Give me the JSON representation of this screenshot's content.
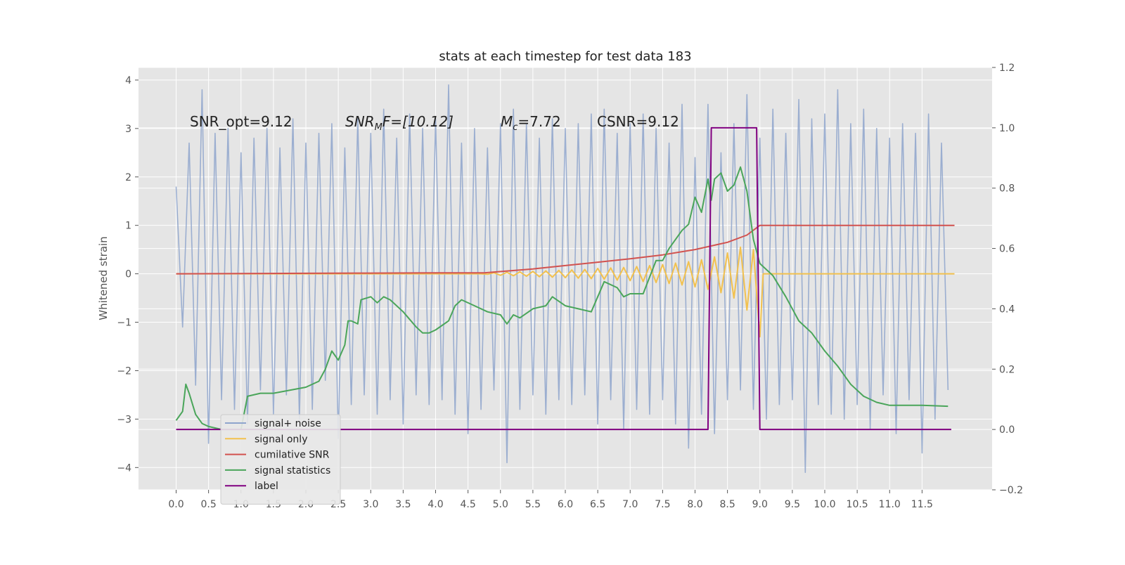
{
  "chart_data": {
    "type": "line",
    "title": "stats at each timestep for test data 183",
    "ylabel": "Whitened strain",
    "annotations": [
      {
        "text": "SNR_opt=9.12"
      },
      {
        "main": "SNR",
        "sub": "M",
        "rest": "F=[10.12]"
      },
      {
        "main": "M",
        "sub": "c",
        "rest": "=7.72"
      },
      {
        "text": "CSNR=9.12"
      }
    ],
    "grid": true,
    "legend": "lower left",
    "xlim": [
      -0.58,
      12.58
    ],
    "ylim": [
      -4.46,
      4.26
    ],
    "y2lim": [
      -0.2,
      1.2
    ],
    "xticks": [
      {
        "value": 0,
        "label": "0.0"
      },
      0.5,
      {
        "value": 1,
        "label": "1.0"
      },
      1.5,
      {
        "value": 2,
        "label": "2.0"
      },
      2.5,
      {
        "value": 3,
        "label": "3.0"
      },
      3.5,
      {
        "value": 4,
        "label": "4.0"
      },
      4.5,
      {
        "value": 5,
        "label": "5.0"
      },
      5.5,
      {
        "value": 6,
        "label": "6.0"
      },
      6.5,
      {
        "value": 7,
        "label": "7.0"
      },
      7.5,
      {
        "value": 8,
        "label": "8.0"
      },
      8.5,
      {
        "value": 9,
        "label": "9.0"
      },
      9.5,
      {
        "value": 10,
        "label": "10.0"
      },
      10.5,
      {
        "value": 11,
        "label": "11.0"
      },
      11.5
    ],
    "yticks": [
      {
        "value": -4,
        "label": "−4"
      },
      {
        "value": -3,
        "label": "−3"
      },
      {
        "value": -2,
        "label": "−2"
      },
      {
        "value": -1,
        "label": "−1"
      },
      0,
      1,
      2,
      3,
      4
    ],
    "y2ticks": [
      {
        "value": -0.2,
        "label": "−0.2"
      },
      {
        "value": 0,
        "label": "0.0"
      },
      0.2,
      0.4,
      0.6,
      0.8,
      {
        "value": 1,
        "label": "1.0"
      },
      1.2
    ],
    "series": [
      {
        "name": "signal+ noise",
        "color": "#8ea4cd",
        "x": [
          0,
          0.1,
          0.2,
          0.3,
          0.4,
          0.5,
          0.6,
          0.7,
          0.8,
          0.9,
          1,
          1.1,
          1.2,
          1.3,
          1.4,
          1.5,
          1.6,
          1.7,
          1.8,
          1.9,
          2,
          2.1,
          2.2,
          2.3,
          2.4,
          2.5,
          2.6,
          2.7,
          2.8,
          2.9,
          3,
          3.1,
          3.2,
          3.3,
          3.4,
          3.5,
          3.6,
          3.7,
          3.8,
          3.9,
          4,
          4.1,
          4.2,
          4.3,
          4.4,
          4.5,
          4.6,
          4.7,
          4.8,
          4.9,
          5,
          5.1,
          5.2,
          5.3,
          5.4,
          5.5,
          5.6,
          5.7,
          5.8,
          5.9,
          6,
          6.1,
          6.2,
          6.3,
          6.4,
          6.5,
          6.6,
          6.7,
          6.8,
          6.9,
          7,
          7.1,
          7.2,
          7.3,
          7.4,
          7.5,
          7.6,
          7.7,
          7.8,
          7.9,
          8,
          8.1,
          8.2,
          8.3,
          8.4,
          8.5,
          8.6,
          8.7,
          8.8,
          8.9,
          9,
          9.1,
          9.2,
          9.3,
          9.4,
          9.5,
          9.6,
          9.7,
          9.8,
          9.9,
          10,
          10.1,
          10.2,
          10.3,
          10.4,
          10.5,
          10.6,
          10.7,
          10.8,
          10.9,
          11,
          11.1,
          11.2,
          11.3,
          11.4,
          11.5,
          11.6,
          11.7,
          11.8,
          11.9
        ],
        "values": [
          1.8,
          -1.1,
          2.7,
          -2.3,
          3.8,
          -3.5,
          2.9,
          -2.6,
          3.0,
          -2.8,
          2.5,
          -3.1,
          2.8,
          -2.4,
          3.0,
          -2.9,
          2.6,
          -2.5,
          3.2,
          -3.0,
          2.7,
          -2.8,
          2.9,
          -2.2,
          3.1,
          -3.4,
          2.6,
          -2.7,
          3.2,
          -2.5,
          2.9,
          -2.9,
          3.4,
          -2.6,
          2.8,
          -3.1,
          3.3,
          -2.5,
          3.0,
          -2.7,
          3.2,
          -2.6,
          3.9,
          -2.9,
          2.7,
          -3.3,
          3.0,
          -2.8,
          2.6,
          -2.4,
          3.1,
          -3.9,
          3.4,
          -2.8,
          3.1,
          -2.5,
          2.8,
          -2.9,
          3.2,
          -2.6,
          3.0,
          -2.7,
          3.1,
          -2.5,
          3.3,
          -3.1,
          3.4,
          -2.6,
          2.9,
          -3.2,
          3.1,
          -2.8,
          3.3,
          -2.9,
          3.0,
          -2.6,
          2.7,
          -3.1,
          3.5,
          -3.6,
          2.4,
          -2.9,
          3.5,
          -3.3,
          2.5,
          -2.6,
          3.1,
          -2.4,
          3.7,
          -2.8,
          2.8,
          -3.0,
          3.4,
          -2.7,
          2.9,
          -2.6,
          3.6,
          -4.1,
          3.2,
          -2.7,
          3.3,
          -2.9,
          3.8,
          -3.0,
          3.1,
          -2.7,
          3.4,
          -3.2,
          3.0,
          -2.5,
          2.8,
          -3.3,
          3.1,
          -2.6,
          2.9,
          -3.7,
          3.3,
          -3.0,
          2.7,
          -2.4
        ]
      },
      {
        "name": "signal only",
        "color": "#f2c14e",
        "x": [
          0,
          4.7,
          4.8,
          4.9,
          5,
          5.1,
          5.2,
          5.3,
          5.4,
          5.5,
          5.6,
          5.7,
          5.8,
          5.9,
          6,
          6.1,
          6.2,
          6.3,
          6.4,
          6.5,
          6.6,
          6.7,
          6.8,
          6.9,
          7,
          7.1,
          7.2,
          7.3,
          7.4,
          7.5,
          7.6,
          7.7,
          7.8,
          7.9,
          8,
          8.1,
          8.2,
          8.3,
          8.4,
          8.5,
          8.6,
          8.7,
          8.8,
          8.9,
          9,
          9.05,
          12
        ],
        "values": [
          0,
          0,
          -0.01,
          0.02,
          -0.03,
          0.03,
          -0.04,
          0.04,
          -0.05,
          0.05,
          -0.06,
          0.06,
          -0.07,
          0.07,
          -0.08,
          0.08,
          -0.09,
          0.09,
          -0.1,
          0.11,
          -0.11,
          0.12,
          -0.13,
          0.13,
          -0.14,
          0.15,
          -0.16,
          0.17,
          -0.18,
          0.19,
          -0.2,
          0.22,
          -0.23,
          0.25,
          -0.27,
          0.29,
          -0.32,
          0.35,
          -0.39,
          0.43,
          -0.5,
          0.55,
          -0.75,
          0.5,
          -1.3,
          0,
          0
        ]
      },
      {
        "name": "cumilative SNR",
        "color": "#d2524f",
        "x": [
          0,
          1,
          2,
          3,
          4,
          4.75,
          5.5,
          6,
          6.5,
          7,
          7.5,
          8,
          8.5,
          8.8,
          9,
          12
        ],
        "values": [
          0,
          0.005,
          0.01,
          0.015,
          0.02,
          0.02,
          0.1,
          0.17,
          0.24,
          0.31,
          0.39,
          0.5,
          0.65,
          0.8,
          1.0,
          1.0
        ]
      },
      {
        "name": "signal statistics",
        "color": "#4aa55a",
        "axis": "y2",
        "x": [
          0,
          0.1,
          0.15,
          0.2,
          0.3,
          0.4,
          0.5,
          0.7,
          1.0,
          1.1,
          1.3,
          1.5,
          2.0,
          2.2,
          2.3,
          2.4,
          2.5,
          2.6,
          2.65,
          2.7,
          2.8,
          2.85,
          3.0,
          3.1,
          3.2,
          3.3,
          3.5,
          3.7,
          3.8,
          3.9,
          4.0,
          4.2,
          4.3,
          4.4,
          4.6,
          4.8,
          5.0,
          5.1,
          5.2,
          5.3,
          5.5,
          5.7,
          5.8,
          6.0,
          6.2,
          6.4,
          6.5,
          6.6,
          6.8,
          6.9,
          7.0,
          7.2,
          7.4,
          7.5,
          7.6,
          7.8,
          7.9,
          8.0,
          8.1,
          8.2,
          8.25,
          8.3,
          8.4,
          8.5,
          8.6,
          8.7,
          8.8,
          8.9,
          9.0,
          9.2,
          9.4,
          9.6,
          9.8,
          10.0,
          10.2,
          10.4,
          10.6,
          10.8,
          11.0,
          11.5,
          11.9
        ],
        "values": [
          0.03,
          0.06,
          0.15,
          0.12,
          0.05,
          0.02,
          0.01,
          0,
          0,
          0.11,
          0.12,
          0.12,
          0.14,
          0.16,
          0.2,
          0.26,
          0.23,
          0.28,
          0.36,
          0.36,
          0.35,
          0.43,
          0.44,
          0.42,
          0.44,
          0.43,
          0.39,
          0.34,
          0.32,
          0.32,
          0.33,
          0.36,
          0.41,
          0.43,
          0.41,
          0.39,
          0.38,
          0.35,
          0.38,
          0.37,
          0.4,
          0.41,
          0.44,
          0.41,
          0.4,
          0.39,
          0.44,
          0.49,
          0.47,
          0.44,
          0.45,
          0.45,
          0.56,
          0.56,
          0.6,
          0.66,
          0.68,
          0.77,
          0.72,
          0.83,
          0.76,
          0.83,
          0.85,
          0.79,
          0.81,
          0.87,
          0.79,
          0.63,
          0.55,
          0.51,
          0.44,
          0.36,
          0.32,
          0.26,
          0.21,
          0.15,
          0.11,
          0.09,
          0.08,
          0.08,
          0.077
        ]
      },
      {
        "name": "label",
        "color": "#800080",
        "axis": "y2",
        "x": [
          0,
          8.2,
          8.25,
          8.95,
          9.0,
          11.95
        ],
        "values": [
          0,
          0,
          1,
          1,
          0,
          0
        ]
      }
    ]
  }
}
